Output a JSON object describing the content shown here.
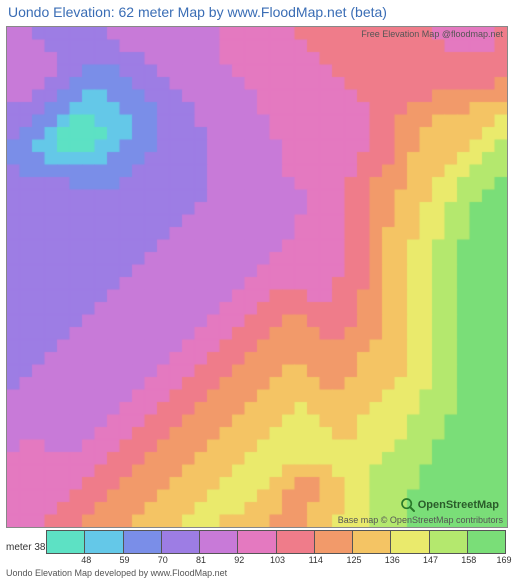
{
  "title": "Uondo Elevation: 62 meter Map by www.FloodMap.net (beta)",
  "attribution_top": "Free Elevation Map @floodmap.net",
  "attribution_bottom": "Base map © OpenStreetMap contributors",
  "osm_label": "OpenStreetMap",
  "footer": "Uondo Elevation Map developed by www.FloodMap.net",
  "legend": {
    "unit_label": "meter",
    "ticks": [
      38,
      48,
      59,
      70,
      81,
      92,
      103,
      114,
      125,
      136,
      147,
      158,
      169
    ],
    "colors": [
      "#5de1c4",
      "#64c8e8",
      "#7a8ee8",
      "#9d7de4",
      "#c87ad8",
      "#e479c0",
      "#ef7c8a",
      "#f29a6a",
      "#f4c464",
      "#eaea6c",
      "#b4e86e",
      "#7ade78"
    ]
  },
  "map": {
    "grid_size": 40,
    "palette": {
      "0": "#5de1c4",
      "1": "#64c8e8",
      "2": "#7a8ee8",
      "3": "#9d7de4",
      "4": "#c87ad8",
      "5": "#e479c0",
      "6": "#ef7c8a",
      "7": "#f29a6a",
      "8": "#f4c464",
      "9": "#eaea6c",
      "10": "#b4e86e",
      "11": "#7ade78"
    },
    "elevation_grid": [
      [
        4,
        4,
        3,
        3,
        3,
        3,
        3,
        3,
        4,
        4,
        4,
        4,
        4,
        4,
        4,
        4,
        4,
        5,
        5,
        5,
        5,
        5,
        5,
        6,
        6,
        6,
        6,
        6,
        6,
        6,
        6,
        6,
        6,
        6,
        5,
        5,
        5,
        5,
        5,
        6
      ],
      [
        4,
        4,
        4,
        3,
        3,
        3,
        3,
        3,
        3,
        4,
        4,
        4,
        4,
        4,
        4,
        4,
        4,
        5,
        5,
        5,
        5,
        5,
        5,
        5,
        6,
        6,
        6,
        6,
        6,
        6,
        6,
        6,
        6,
        6,
        6,
        5,
        5,
        5,
        5,
        6
      ],
      [
        4,
        4,
        4,
        4,
        3,
        3,
        3,
        3,
        3,
        3,
        3,
        4,
        4,
        4,
        4,
        4,
        4,
        5,
        5,
        5,
        5,
        5,
        5,
        5,
        5,
        6,
        6,
        6,
        6,
        6,
        6,
        6,
        6,
        6,
        6,
        6,
        6,
        6,
        6,
        6
      ],
      [
        4,
        4,
        4,
        4,
        3,
        3,
        2,
        2,
        2,
        3,
        3,
        3,
        4,
        4,
        4,
        4,
        4,
        4,
        5,
        5,
        5,
        5,
        5,
        5,
        5,
        5,
        6,
        6,
        6,
        6,
        6,
        6,
        6,
        6,
        6,
        6,
        6,
        6,
        6,
        6
      ],
      [
        4,
        4,
        4,
        3,
        3,
        2,
        2,
        2,
        2,
        2,
        3,
        3,
        3,
        4,
        4,
        4,
        4,
        4,
        4,
        5,
        5,
        5,
        5,
        5,
        5,
        5,
        5,
        6,
        6,
        6,
        6,
        6,
        6,
        6,
        6,
        6,
        6,
        6,
        6,
        7
      ],
      [
        4,
        4,
        3,
        3,
        2,
        2,
        1,
        1,
        2,
        2,
        2,
        3,
        3,
        3,
        4,
        4,
        4,
        4,
        4,
        4,
        5,
        5,
        5,
        5,
        5,
        5,
        5,
        5,
        6,
        6,
        6,
        6,
        6,
        6,
        7,
        7,
        7,
        7,
        7,
        7
      ],
      [
        3,
        3,
        3,
        2,
        2,
        1,
        1,
        1,
        1,
        2,
        2,
        2,
        3,
        3,
        3,
        4,
        4,
        4,
        4,
        4,
        5,
        5,
        5,
        5,
        5,
        5,
        5,
        5,
        5,
        6,
        6,
        6,
        7,
        7,
        7,
        7,
        7,
        8,
        8,
        8
      ],
      [
        3,
        3,
        2,
        2,
        1,
        0,
        0,
        1,
        1,
        1,
        2,
        2,
        3,
        3,
        3,
        4,
        4,
        4,
        4,
        4,
        4,
        5,
        5,
        5,
        5,
        5,
        5,
        5,
        5,
        6,
        6,
        7,
        7,
        7,
        8,
        8,
        8,
        8,
        8,
        9
      ],
      [
        3,
        2,
        2,
        1,
        0,
        0,
        0,
        0,
        1,
        1,
        2,
        2,
        3,
        3,
        3,
        3,
        4,
        4,
        4,
        4,
        4,
        5,
        5,
        5,
        5,
        5,
        5,
        5,
        5,
        6,
        6,
        7,
        7,
        8,
        8,
        8,
        8,
        8,
        9,
        9
      ],
      [
        2,
        2,
        1,
        1,
        0,
        0,
        0,
        1,
        1,
        2,
        2,
        2,
        3,
        3,
        3,
        3,
        4,
        4,
        4,
        4,
        4,
        4,
        5,
        5,
        5,
        5,
        5,
        5,
        5,
        6,
        6,
        7,
        7,
        8,
        8,
        8,
        8,
        9,
        9,
        10
      ],
      [
        2,
        2,
        2,
        1,
        1,
        1,
        1,
        1,
        2,
        2,
        2,
        3,
        3,
        3,
        3,
        3,
        4,
        4,
        4,
        4,
        4,
        4,
        5,
        5,
        5,
        5,
        5,
        5,
        6,
        6,
        6,
        7,
        8,
        8,
        8,
        8,
        9,
        9,
        10,
        10
      ],
      [
        3,
        2,
        2,
        2,
        2,
        2,
        2,
        2,
        2,
        2,
        3,
        3,
        3,
        3,
        3,
        3,
        4,
        4,
        4,
        4,
        4,
        4,
        5,
        5,
        5,
        5,
        5,
        5,
        6,
        6,
        7,
        7,
        8,
        8,
        8,
        9,
        9,
        10,
        10,
        10
      ],
      [
        3,
        3,
        3,
        3,
        3,
        2,
        2,
        2,
        2,
        3,
        3,
        3,
        3,
        3,
        3,
        3,
        4,
        4,
        4,
        4,
        4,
        4,
        4,
        5,
        5,
        5,
        5,
        6,
        6,
        7,
        7,
        7,
        8,
        8,
        9,
        9,
        10,
        10,
        10,
        11
      ],
      [
        3,
        3,
        3,
        3,
        3,
        3,
        3,
        3,
        3,
        3,
        3,
        3,
        3,
        3,
        3,
        3,
        4,
        4,
        4,
        4,
        4,
        4,
        4,
        4,
        5,
        5,
        5,
        6,
        6,
        7,
        7,
        8,
        8,
        8,
        9,
        9,
        10,
        10,
        11,
        11
      ],
      [
        3,
        3,
        3,
        3,
        3,
        3,
        3,
        3,
        3,
        3,
        3,
        3,
        3,
        3,
        3,
        4,
        4,
        4,
        4,
        4,
        4,
        4,
        4,
        4,
        5,
        5,
        5,
        6,
        6,
        7,
        7,
        8,
        8,
        9,
        9,
        10,
        10,
        11,
        11,
        11
      ],
      [
        3,
        3,
        3,
        3,
        3,
        3,
        3,
        3,
        3,
        3,
        3,
        3,
        3,
        3,
        4,
        4,
        4,
        4,
        4,
        4,
        4,
        4,
        4,
        5,
        5,
        5,
        5,
        6,
        6,
        7,
        7,
        8,
        8,
        9,
        9,
        10,
        10,
        11,
        11,
        11
      ],
      [
        3,
        3,
        3,
        3,
        3,
        3,
        3,
        3,
        3,
        3,
        3,
        3,
        3,
        4,
        4,
        4,
        4,
        4,
        4,
        4,
        4,
        4,
        4,
        5,
        5,
        5,
        5,
        6,
        6,
        7,
        8,
        8,
        8,
        9,
        9,
        10,
        10,
        11,
        11,
        11
      ],
      [
        3,
        3,
        3,
        3,
        3,
        3,
        3,
        3,
        3,
        3,
        3,
        3,
        4,
        4,
        4,
        4,
        4,
        4,
        4,
        4,
        4,
        4,
        5,
        5,
        5,
        5,
        5,
        6,
        6,
        7,
        8,
        8,
        9,
        9,
        10,
        10,
        11,
        11,
        11,
        11
      ],
      [
        3,
        3,
        3,
        3,
        3,
        3,
        3,
        3,
        3,
        3,
        3,
        4,
        4,
        4,
        4,
        4,
        4,
        4,
        4,
        4,
        4,
        5,
        5,
        5,
        5,
        5,
        5,
        6,
        6,
        7,
        8,
        8,
        9,
        9,
        10,
        10,
        11,
        11,
        11,
        11
      ],
      [
        3,
        3,
        3,
        3,
        3,
        3,
        3,
        3,
        3,
        3,
        4,
        4,
        4,
        4,
        4,
        4,
        4,
        4,
        4,
        4,
        5,
        5,
        5,
        5,
        5,
        5,
        5,
        6,
        6,
        7,
        8,
        8,
        9,
        9,
        10,
        10,
        11,
        11,
        11,
        11
      ],
      [
        3,
        3,
        3,
        3,
        3,
        3,
        3,
        3,
        3,
        4,
        4,
        4,
        4,
        4,
        4,
        4,
        4,
        4,
        4,
        5,
        5,
        5,
        5,
        5,
        5,
        5,
        6,
        6,
        6,
        7,
        8,
        8,
        9,
        9,
        10,
        10,
        11,
        11,
        11,
        11
      ],
      [
        3,
        3,
        3,
        3,
        3,
        3,
        3,
        3,
        4,
        4,
        4,
        4,
        4,
        4,
        4,
        4,
        4,
        4,
        5,
        5,
        5,
        6,
        6,
        6,
        5,
        5,
        6,
        6,
        7,
        7,
        8,
        8,
        9,
        9,
        10,
        10,
        11,
        11,
        11,
        11
      ],
      [
        3,
        3,
        3,
        3,
        3,
        3,
        3,
        4,
        4,
        4,
        4,
        4,
        4,
        4,
        4,
        4,
        4,
        5,
        5,
        5,
        6,
        6,
        6,
        6,
        6,
        6,
        6,
        6,
        7,
        7,
        8,
        8,
        9,
        9,
        10,
        10,
        11,
        11,
        11,
        11
      ],
      [
        3,
        3,
        3,
        3,
        3,
        3,
        4,
        4,
        4,
        4,
        4,
        4,
        4,
        4,
        4,
        4,
        5,
        5,
        5,
        6,
        6,
        6,
        7,
        7,
        6,
        6,
        6,
        6,
        7,
        7,
        8,
        8,
        9,
        9,
        10,
        10,
        11,
        11,
        11,
        11
      ],
      [
        3,
        3,
        3,
        3,
        3,
        4,
        4,
        4,
        4,
        4,
        4,
        4,
        4,
        4,
        4,
        5,
        5,
        5,
        6,
        6,
        6,
        7,
        7,
        7,
        7,
        6,
        6,
        7,
        7,
        7,
        8,
        8,
        9,
        9,
        10,
        10,
        11,
        11,
        11,
        11
      ],
      [
        3,
        3,
        3,
        3,
        4,
        4,
        4,
        4,
        4,
        4,
        4,
        4,
        4,
        4,
        5,
        5,
        5,
        6,
        6,
        6,
        7,
        7,
        7,
        7,
        7,
        7,
        7,
        7,
        7,
        8,
        8,
        8,
        9,
        9,
        10,
        10,
        11,
        11,
        11,
        11
      ],
      [
        3,
        3,
        3,
        4,
        4,
        4,
        4,
        4,
        4,
        4,
        4,
        4,
        4,
        5,
        5,
        5,
        6,
        6,
        6,
        7,
        7,
        7,
        7,
        7,
        7,
        7,
        7,
        7,
        8,
        8,
        8,
        8,
        9,
        9,
        10,
        10,
        11,
        11,
        11,
        11
      ],
      [
        3,
        3,
        4,
        4,
        4,
        4,
        4,
        4,
        4,
        4,
        4,
        4,
        5,
        5,
        5,
        6,
        6,
        6,
        7,
        7,
        7,
        7,
        8,
        8,
        7,
        7,
        7,
        7,
        8,
        8,
        8,
        8,
        9,
        9,
        10,
        10,
        11,
        11,
        11,
        11
      ],
      [
        3,
        4,
        4,
        4,
        4,
        4,
        4,
        4,
        4,
        4,
        4,
        5,
        5,
        5,
        6,
        6,
        6,
        7,
        7,
        7,
        7,
        8,
        8,
        8,
        8,
        7,
        7,
        8,
        8,
        8,
        8,
        9,
        9,
        9,
        10,
        10,
        11,
        11,
        11,
        11
      ],
      [
        4,
        4,
        4,
        4,
        4,
        4,
        4,
        4,
        4,
        4,
        5,
        5,
        5,
        6,
        6,
        6,
        7,
        7,
        7,
        7,
        8,
        8,
        8,
        8,
        8,
        8,
        8,
        8,
        8,
        8,
        9,
        9,
        9,
        10,
        10,
        10,
        11,
        11,
        11,
        11
      ],
      [
        4,
        4,
        4,
        4,
        4,
        4,
        4,
        4,
        4,
        5,
        5,
        5,
        6,
        6,
        6,
        7,
        7,
        7,
        7,
        8,
        8,
        8,
        8,
        9,
        8,
        8,
        8,
        8,
        8,
        9,
        9,
        9,
        9,
        10,
        10,
        10,
        11,
        11,
        11,
        11
      ],
      [
        4,
        4,
        4,
        4,
        4,
        4,
        4,
        4,
        5,
        5,
        5,
        6,
        6,
        6,
        7,
        7,
        7,
        7,
        8,
        8,
        8,
        8,
        9,
        9,
        9,
        8,
        8,
        8,
        9,
        9,
        9,
        9,
        10,
        10,
        10,
        11,
        11,
        11,
        11,
        11
      ],
      [
        4,
        4,
        4,
        4,
        4,
        4,
        4,
        5,
        5,
        5,
        6,
        6,
        6,
        7,
        7,
        7,
        7,
        8,
        8,
        8,
        8,
        9,
        9,
        9,
        9,
        9,
        8,
        8,
        9,
        9,
        9,
        9,
        10,
        10,
        10,
        11,
        11,
        11,
        11,
        11
      ],
      [
        4,
        5,
        5,
        4,
        4,
        4,
        5,
        5,
        5,
        6,
        6,
        6,
        7,
        7,
        7,
        7,
        8,
        8,
        8,
        8,
        9,
        9,
        9,
        9,
        9,
        9,
        9,
        9,
        9,
        9,
        9,
        10,
        10,
        10,
        11,
        11,
        11,
        11,
        11,
        11
      ],
      [
        5,
        5,
        5,
        5,
        5,
        5,
        5,
        5,
        6,
        6,
        6,
        7,
        7,
        7,
        7,
        8,
        8,
        8,
        8,
        9,
        9,
        9,
        9,
        9,
        9,
        9,
        9,
        9,
        9,
        9,
        10,
        10,
        10,
        10,
        11,
        11,
        11,
        11,
        11,
        11
      ],
      [
        5,
        5,
        5,
        5,
        5,
        5,
        5,
        6,
        6,
        6,
        7,
        7,
        7,
        7,
        8,
        8,
        8,
        8,
        9,
        9,
        9,
        9,
        8,
        8,
        8,
        8,
        9,
        9,
        9,
        10,
        10,
        10,
        10,
        11,
        11,
        11,
        11,
        11,
        11,
        11
      ],
      [
        5,
        5,
        5,
        5,
        5,
        5,
        6,
        6,
        6,
        7,
        7,
        7,
        7,
        8,
        8,
        8,
        8,
        9,
        9,
        9,
        9,
        8,
        8,
        7,
        7,
        8,
        8,
        9,
        9,
        10,
        10,
        10,
        10,
        11,
        11,
        11,
        11,
        11,
        11,
        11
      ],
      [
        5,
        5,
        5,
        5,
        5,
        6,
        6,
        6,
        7,
        7,
        7,
        7,
        8,
        8,
        8,
        8,
        9,
        9,
        9,
        9,
        8,
        8,
        7,
        7,
        7,
        8,
        8,
        9,
        9,
        10,
        10,
        10,
        11,
        11,
        11,
        11,
        11,
        11,
        11,
        11
      ],
      [
        5,
        5,
        5,
        5,
        6,
        6,
        6,
        7,
        7,
        7,
        7,
        8,
        8,
        8,
        8,
        9,
        9,
        9,
        9,
        8,
        8,
        8,
        7,
        7,
        8,
        8,
        8,
        9,
        9,
        10,
        10,
        10,
        11,
        11,
        11,
        11,
        11,
        11,
        11,
        11
      ],
      [
        5,
        5,
        5,
        6,
        6,
        6,
        7,
        7,
        7,
        7,
        8,
        8,
        8,
        8,
        9,
        9,
        9,
        8,
        8,
        8,
        8,
        7,
        7,
        7,
        8,
        8,
        9,
        9,
        9,
        10,
        10,
        10,
        11,
        11,
        11,
        11,
        11,
        11,
        11,
        11
      ]
    ]
  }
}
